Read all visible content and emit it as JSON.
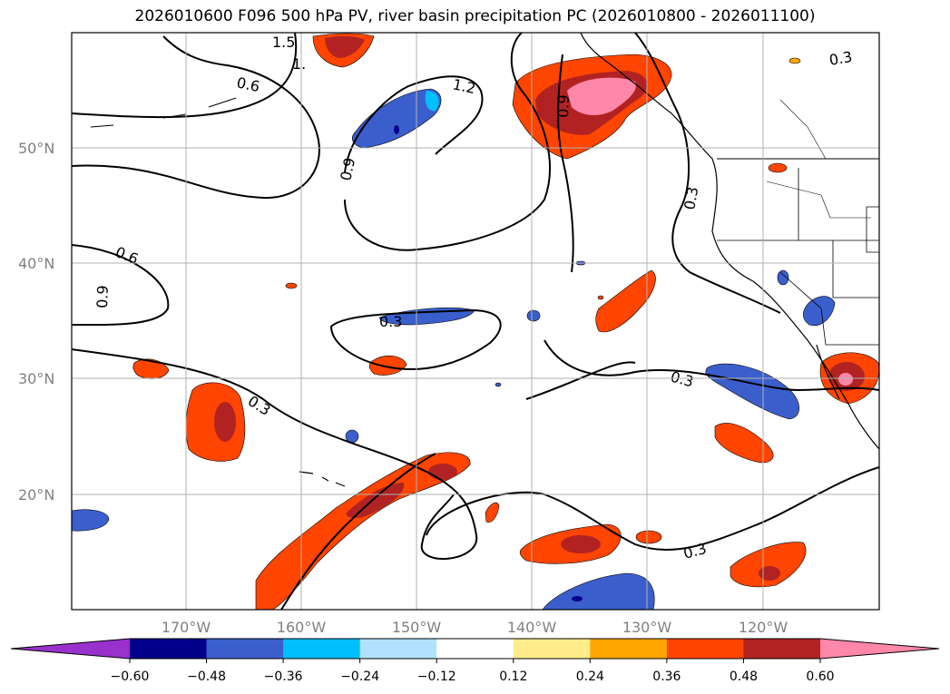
{
  "title": "2026010600 F096 500 hPa PV, river basin precipitation PC (2026010800 - 2026011100)",
  "map": {
    "lat_labels": [
      "50°N",
      "40°N",
      "30°N",
      "20°N"
    ],
    "lon_labels": [
      "170°W",
      "160°W",
      "150°W",
      "140°W",
      "130°W",
      "120°W"
    ],
    "contour_labels": [
      "1.5",
      "1.",
      "0.6",
      "1.2",
      "0.9",
      "0.9",
      "0.3",
      "0.6",
      "0.9",
      "0.3",
      "0.3",
      "0.3",
      "0.3",
      "0.3"
    ]
  },
  "colorbar": {
    "ticks": [
      "−0.60",
      "−0.48",
      "−0.36",
      "−0.24",
      "−0.12",
      "0.12",
      "0.24",
      "0.36",
      "0.48",
      "0.60"
    ],
    "colors": [
      "#9932CC",
      "#00008B",
      "#3A5FCD",
      "#00BFFF",
      "#B0E2FF",
      "#FFFFFF",
      "#FFEC8B",
      "#FFA500",
      "#FF4500",
      "#B22222",
      "#FF88AA"
    ]
  }
}
